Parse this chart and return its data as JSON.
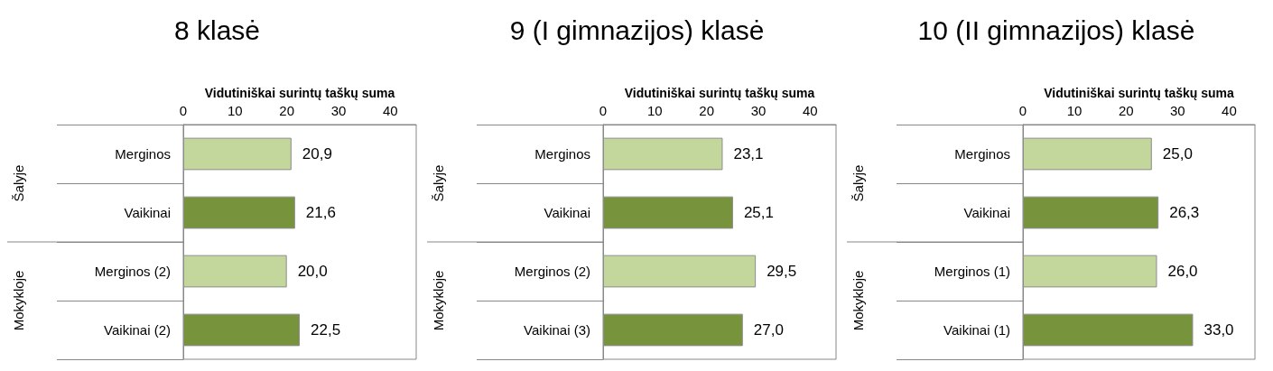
{
  "chart_data": [
    {
      "type": "bar",
      "orientation": "horizontal",
      "title": "8 klasė",
      "xlabel": "Vidutiniškai surintų taškų suma",
      "categories": [
        "Merginos",
        "Vaikinai",
        "Merginos (2)",
        "Vaikinai (2)"
      ],
      "values": [
        20.9,
        21.6,
        20.0,
        22.5
      ],
      "colors": [
        "#c3d69b",
        "#77933c",
        "#c3d69b",
        "#77933c"
      ],
      "value_labels": [
        "20,9",
        "21,6",
        "20,0",
        "22,5"
      ],
      "xlim": [
        0,
        45
      ],
      "xticks": [
        0,
        10,
        20,
        30,
        40
      ],
      "annotations": [
        "Šalyje",
        "Mokykloje"
      ]
    },
    {
      "type": "bar",
      "orientation": "horizontal",
      "title": "9 (I gimnazijos) klasė",
      "xlabel": "Vidutiniškai surintų taškų suma",
      "categories": [
        "Merginos",
        "Vaikinai",
        "Merginos (2)",
        "Vaikinai (3)"
      ],
      "values": [
        23.1,
        25.1,
        29.5,
        27.0
      ],
      "colors": [
        "#c3d69b",
        "#77933c",
        "#c3d69b",
        "#77933c"
      ],
      "value_labels": [
        "23,1",
        "25,1",
        "29,5",
        "27,0"
      ],
      "xlim": [
        0,
        45
      ],
      "xticks": [
        0,
        10,
        20,
        30,
        40
      ],
      "annotations": [
        "Šalyje",
        "Mokykloje"
      ]
    },
    {
      "type": "bar",
      "orientation": "horizontal",
      "title": "10 (II gimnazijos) klasė",
      "xlabel": "Vidutiniškai surintų taškų suma",
      "categories": [
        "Merginos",
        "Vaikinai",
        "Merginos (1)",
        "Vaikinai (1)"
      ],
      "values": [
        25.0,
        26.3,
        26.0,
        33.0
      ],
      "colors": [
        "#c3d69b",
        "#77933c",
        "#c3d69b",
        "#77933c"
      ],
      "value_labels": [
        "25,0",
        "26,3",
        "26,0",
        "33,0"
      ],
      "xlim": [
        0,
        45
      ],
      "xticks": [
        0,
        10,
        20,
        30,
        40
      ],
      "annotations": [
        "Šalyje",
        "Mokykloje"
      ]
    }
  ]
}
